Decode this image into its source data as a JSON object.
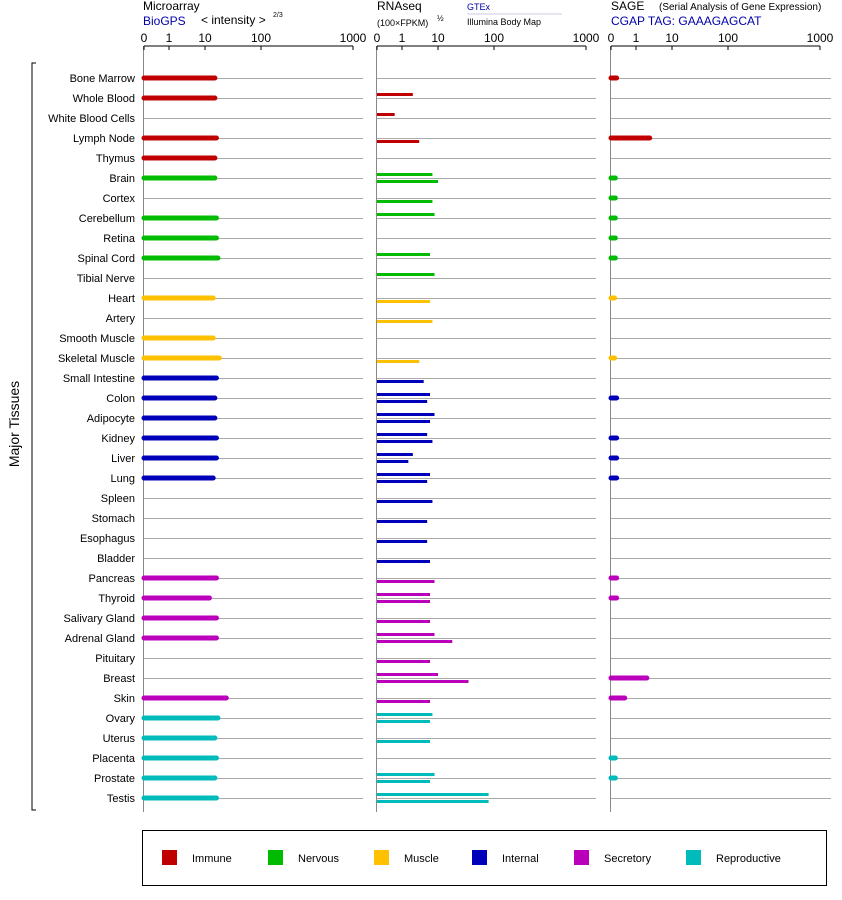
{
  "y_axis_label": "Major Tissues",
  "panels": {
    "microarray": {
      "title": "Microarray",
      "subtitle_link": "BioGPS",
      "scale_label": "< intensity >",
      "scale_exponent": "2/3",
      "ticks": [
        "0",
        "1",
        "10",
        "100",
        "1000"
      ]
    },
    "rnaseq": {
      "title": "RNAseq",
      "scale_label": "(100×FPKM)",
      "scale_exponent": "½",
      "link_gtex": "GTEx",
      "link_ibm": "Illumina Body Map",
      "ticks": [
        "0",
        "1",
        "10",
        "100",
        "1000"
      ]
    },
    "sage": {
      "title": "SAGE",
      "subtitle": "(Serial Analysis of Gene Expression)",
      "tag_label": "CGAP TAG: GAAAGAGCAT",
      "ticks": [
        "0",
        "1",
        "10",
        "100",
        "1000"
      ]
    }
  },
  "chart_data": {
    "type": "bar",
    "scale": "sqrt-like log axis (0, 1, 10, 100, 1000)",
    "xlim": [
      0,
      1000
    ],
    "categories": [
      "Bone Marrow",
      "Whole Blood",
      "White Blood Cells",
      "Lymph Node",
      "Thymus",
      "Brain",
      "Cortex",
      "Cerebellum",
      "Retina",
      "Spinal Cord",
      "Tibial Nerve",
      "Heart",
      "Artery",
      "Smooth Muscle",
      "Skeletal Muscle",
      "Small Intestine",
      "Colon",
      "Adipocyte",
      "Kidney",
      "Liver",
      "Lung",
      "Spleen",
      "Stomach",
      "Esophagus",
      "Bladder",
      "Pancreas",
      "Thyroid",
      "Salivary Gland",
      "Adrenal Gland",
      "Pituitary",
      "Breast",
      "Skin",
      "Ovary",
      "Uterus",
      "Placenta",
      "Prostate",
      "Testis"
    ],
    "groups": [
      "Immune",
      "Immune",
      "Immune",
      "Immune",
      "Immune",
      "Nervous",
      "Nervous",
      "Nervous",
      "Nervous",
      "Nervous",
      "Nervous",
      "Muscle",
      "Muscle",
      "Muscle",
      "Muscle",
      "Internal",
      "Internal",
      "Internal",
      "Internal",
      "Internal",
      "Internal",
      "Internal",
      "Internal",
      "Internal",
      "Internal",
      "Secretory",
      "Secretory",
      "Secretory",
      "Secretory",
      "Secretory",
      "Secretory",
      "Secretory",
      "Reproductive",
      "Reproductive",
      "Reproductive",
      "Reproductive",
      "Reproductive"
    ],
    "legend": [
      {
        "name": "Immune",
        "color": "#c00000"
      },
      {
        "name": "Nervous",
        "color": "#00bb00"
      },
      {
        "name": "Muscle",
        "color": "#ffc000"
      },
      {
        "name": "Internal",
        "color": "#0000bb"
      },
      {
        "name": "Secretory",
        "color": "#bb00bb"
      },
      {
        "name": "Reproductive",
        "color": "#00bbbb"
      }
    ],
    "microarray": [
      15,
      15,
      null,
      16,
      15,
      15,
      null,
      16,
      16,
      17,
      null,
      14,
      null,
      14,
      18,
      16,
      15,
      15,
      16,
      16,
      14,
      null,
      null,
      null,
      null,
      16,
      12,
      16,
      16,
      null,
      null,
      24,
      17,
      15,
      16,
      15,
      16
    ],
    "rnaseq_gtex": [
      null,
      2,
      0.5,
      null,
      null,
      7,
      null,
      8,
      null,
      6,
      8,
      null,
      null,
      null,
      null,
      null,
      6,
      8,
      5,
      2,
      6,
      null,
      null,
      null,
      null,
      null,
      6,
      null,
      8,
      null,
      10,
      null,
      7,
      null,
      null,
      8,
      80
    ],
    "rnaseq_ibm": [
      null,
      null,
      null,
      3,
      null,
      10,
      7,
      null,
      null,
      null,
      null,
      6,
      7,
      null,
      3,
      4,
      5,
      6,
      7,
      1.5,
      5,
      7,
      5,
      5,
      6,
      8,
      6,
      6,
      18,
      6,
      35,
      6,
      6,
      6,
      null,
      6,
      80
    ],
    "sage": [
      0.05,
      null,
      null,
      2.4,
      null,
      0.03,
      0.03,
      0.03,
      0.03,
      0.03,
      null,
      0.02,
      null,
      null,
      0.02,
      null,
      0.05,
      null,
      0.05,
      0.05,
      0.05,
      null,
      null,
      null,
      null,
      0.05,
      0.05,
      null,
      null,
      null,
      2,
      0.3,
      null,
      null,
      0.03,
      0.03,
      null
    ]
  }
}
